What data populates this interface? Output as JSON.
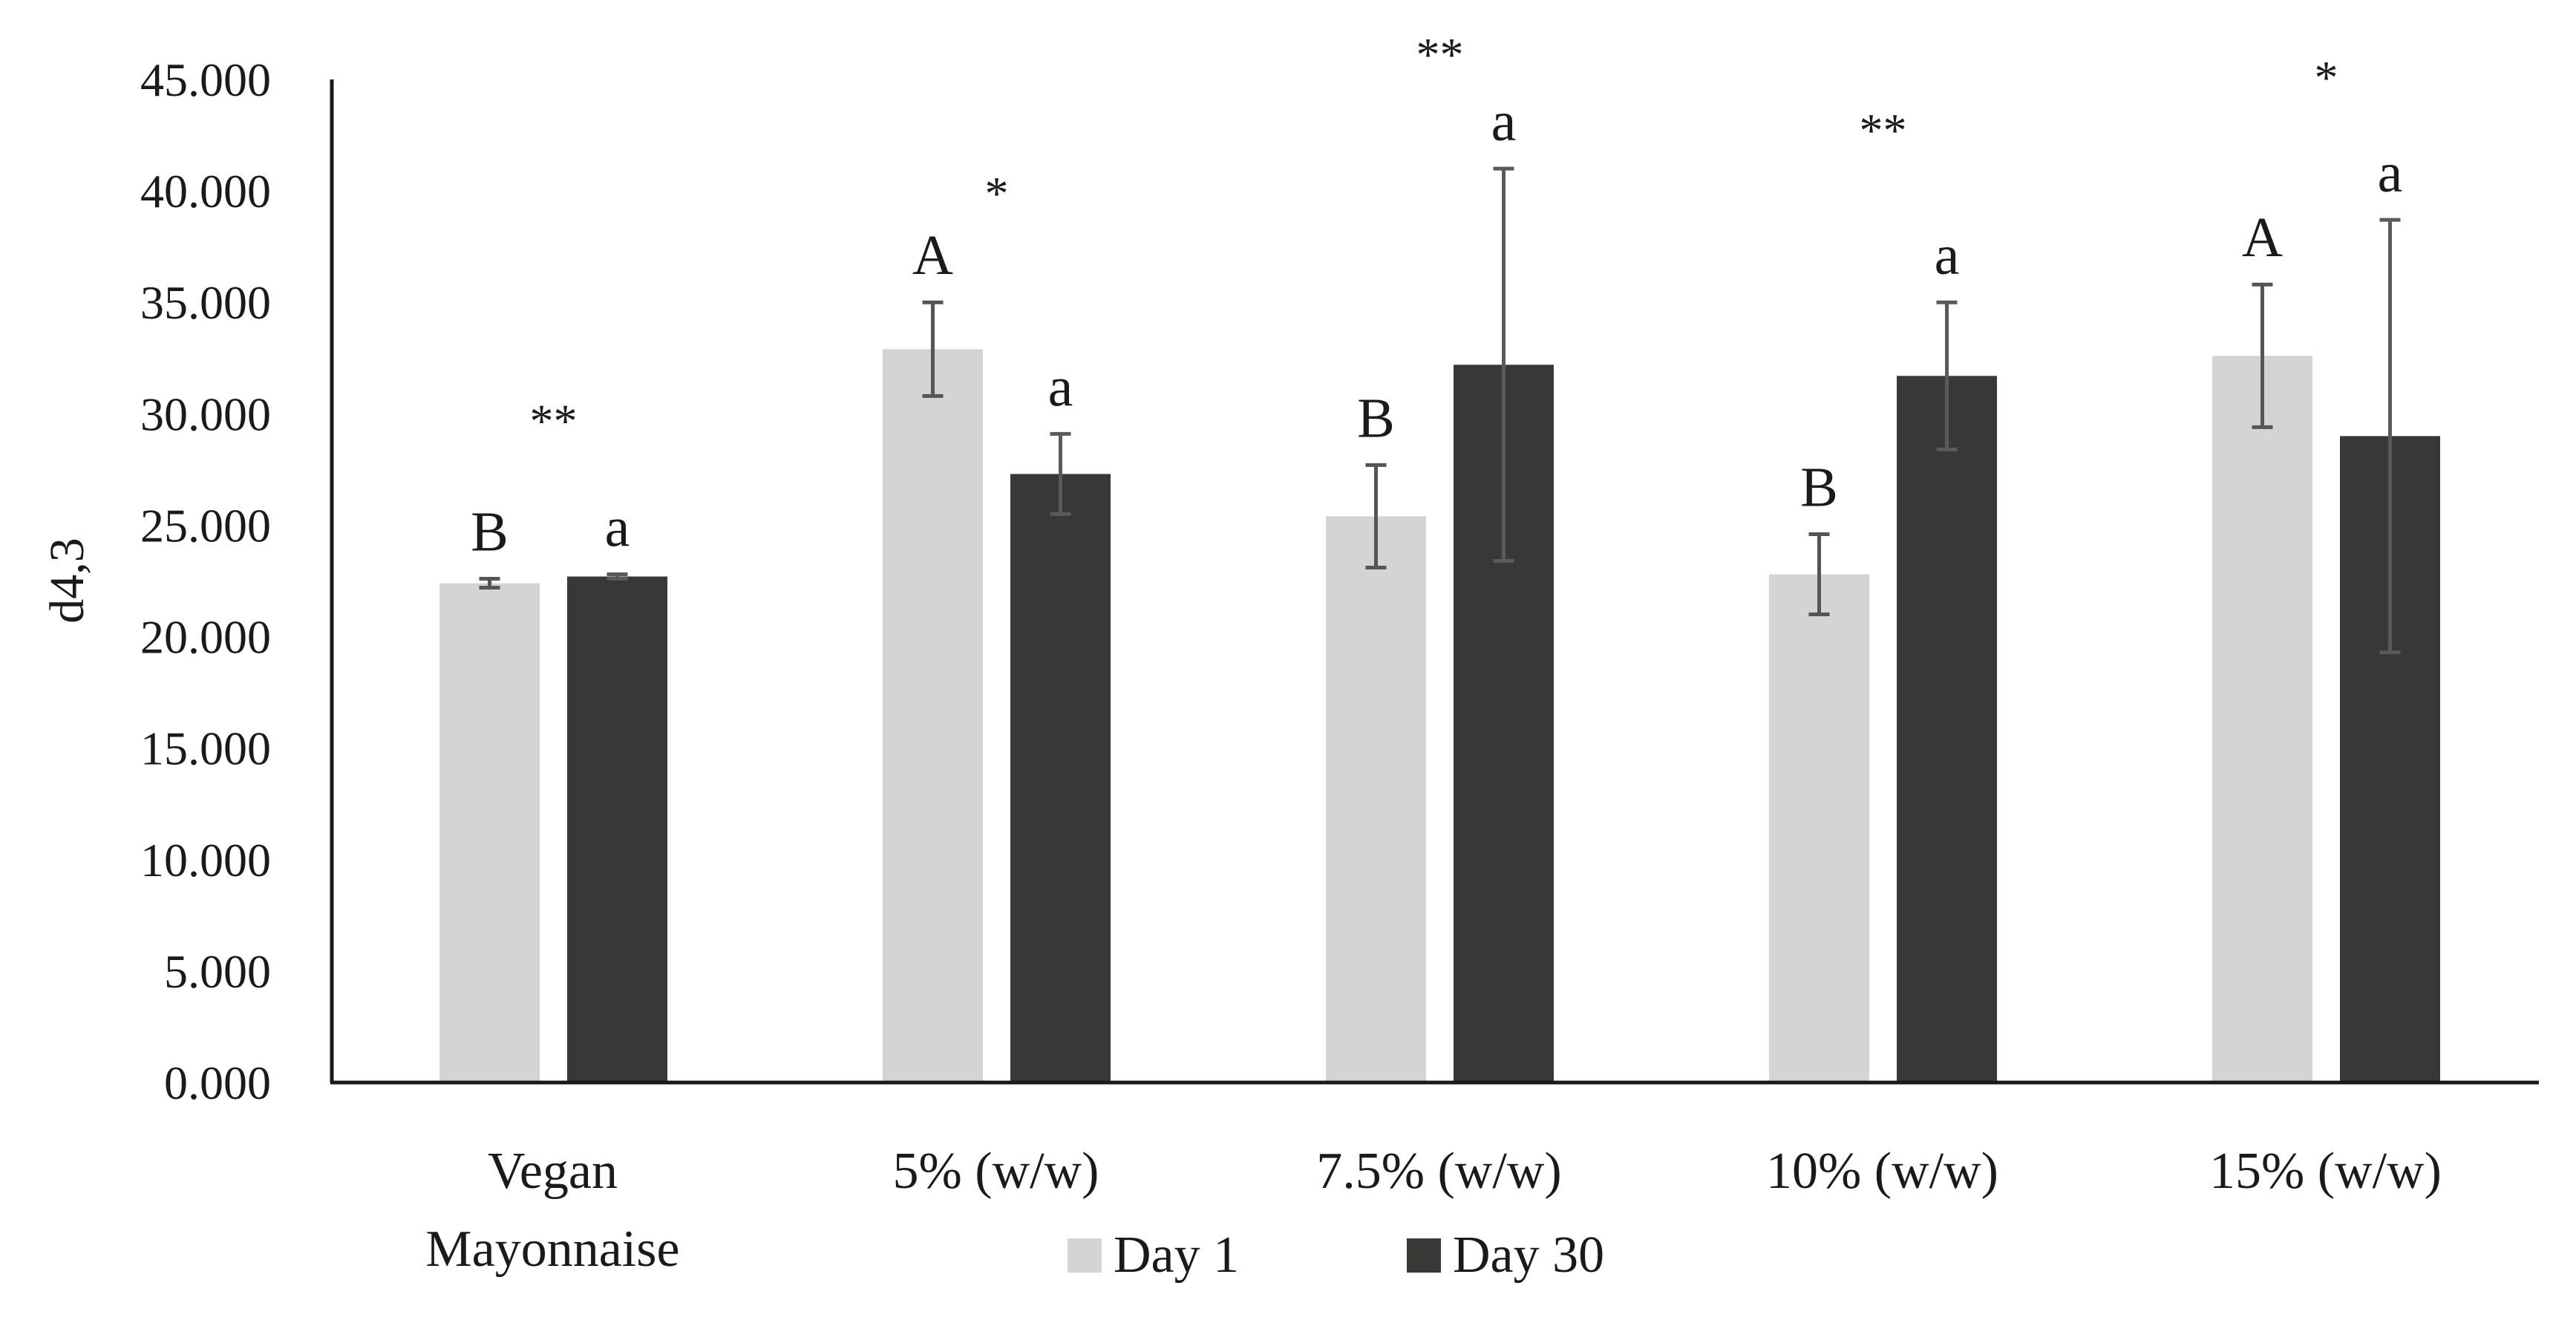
{
  "chart_data": {
    "type": "bar",
    "title": "",
    "xlabel": "",
    "ylabel": "d4,3",
    "ylim": [
      0,
      45
    ],
    "yticks": [
      "0.000",
      "5.000",
      "10.000",
      "15.000",
      "20.000",
      "25.000",
      "30.000",
      "35.000",
      "40.000",
      "45.000"
    ],
    "grid": false,
    "legend_position": "bottom-center",
    "categories": [
      [
        "Vegan",
        "Mayonnaise"
      ],
      [
        "5% (w/w)"
      ],
      [
        "7.5% (w/w)"
      ],
      [
        "10% (w/w)"
      ],
      [
        "15% (w/w)"
      ]
    ],
    "series": [
      {
        "name": "Day 1",
        "color": "#d4d4d4",
        "values": [
          22.4,
          32.9,
          25.4,
          22.8,
          32.6
        ],
        "errors": [
          0.2,
          2.1,
          2.3,
          1.8,
          3.2
        ],
        "letters": [
          "B",
          "A",
          "B",
          "B",
          "A"
        ]
      },
      {
        "name": "Day 30",
        "color": "#383836",
        "values": [
          22.7,
          27.3,
          32.2,
          31.7,
          29.0
        ],
        "errors": [
          0.1,
          1.8,
          8.8,
          3.3,
          9.7
        ],
        "letters": [
          "a",
          "a",
          "a",
          "a",
          "a"
        ]
      }
    ],
    "significance": [
      "**",
      "*",
      "**",
      "**",
      "*"
    ]
  }
}
